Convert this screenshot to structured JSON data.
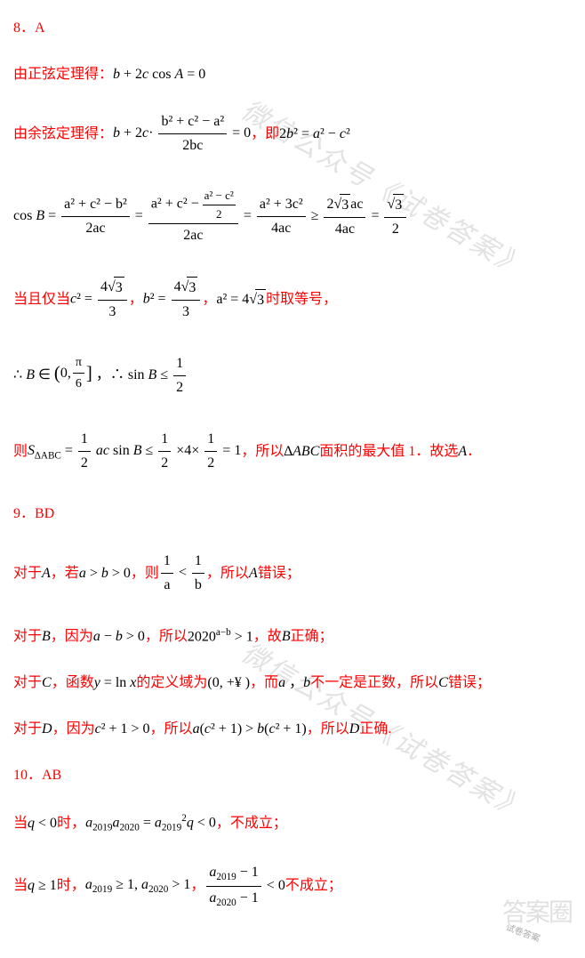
{
  "colors": {
    "highlight": "#ff0000",
    "body": "#000000",
    "watermark": "#cccccc",
    "background": "#ffffff"
  },
  "q8": {
    "number": "8．A",
    "line1_red": "由正弦定理得：",
    "line1_math": "b + 2c cos A = 0",
    "line2_red_a": "由余弦定理得：",
    "frac1_num": "b² + c² − a²",
    "frac1_den": "2bc",
    "line2_red_b": "，即",
    "line2_math_b": "2b² = a² − c²",
    "cosB": "cos B =",
    "fA_num": "a² + c² − b²",
    "fA_den": "2ac",
    "fB_num_pre": "a² + c² − ",
    "fB_inner_num": "a² − c²",
    "fB_inner_den": "2",
    "fB_den": "2ac",
    "fC_num": "a² + 3c²",
    "fC_den": "4ac",
    "fD_num_pre": "2",
    "fD_num_sqrt": "3",
    "fD_num_post": "ac",
    "fD_den": "4ac",
    "fE_sqrt": "3",
    "fE_den": "2",
    "line4_red_a": "当且仅当",
    "c2": "c² =",
    "c2_num_pre": "4",
    "c2_num_sqrt": "3",
    "c2_den": "3",
    "b2": "b² =",
    "b2_num_pre": "4",
    "b2_num_sqrt": "3",
    "b2_den": "3",
    "a2_pre": "a² = 4",
    "a2_sqrt": "3",
    "line4_red_b": " 时取等号，",
    "line5_a": "∴ B ∈",
    "pi": "π",
    "six": "6",
    "zero": "0,",
    "line5_b": "，∴ sin B ≤",
    "half_num": "1",
    "half_den": "2",
    "line6_red_a": "则",
    "S": "S",
    "sub_abc": "∆ABC",
    "eq_half": " = ",
    "ac_sin": "ac sin B ≤ ",
    "times4": "×4×",
    "eq1": " = 1",
    "line6_red_b": "，所以",
    "tri": "∆ABC",
    "line6_red_c": "面积的最大值 1．故选",
    "A": "A",
    "dot": "．"
  },
  "q9": {
    "number": "9．BD",
    "A_red1": "对于",
    "A_i": "A",
    "A_red2": "，若",
    "A_cond": "a > b > 0",
    "A_red3": "，则",
    "oneA_num": "1",
    "oneA_den": "a",
    "lt": "<",
    "oneB_num": "1",
    "oneB_den": "b",
    "A_red4": "，所以",
    "A_i2": "A",
    "A_red5": "错误；",
    "B_red1": "对于",
    "B_i": "B",
    "B_red2": "，因为",
    "B_cond": "a − b > 0",
    "B_red3": "，所以",
    "B_exp_base": "2020",
    "B_exp_sup": "a−b",
    "B_gt1": " > 1",
    "B_red4": "，故",
    "B_i2": "B",
    "B_red5": "正确；",
    "C_red1": "对于",
    "C_i": "C",
    "C_red2": "，函数",
    "C_fn": "y = ln x",
    "C_red3": "的定义域为",
    "C_dom": "(0, +¥ )",
    "C_red4": "，而",
    "C_ab": "a ， b",
    "C_red5": "不一定是正数，所以",
    "C_i2": "C",
    "C_red6": "错误；",
    "D_red1": "对于",
    "D_i": "D",
    "D_red2": "，因为",
    "D_cond": "c² + 1 > 0",
    "D_red3": "，所以",
    "D_ineq": "a(c² + 1) > b(c² + 1)",
    "D_red4": "，所以",
    "D_i2": "D",
    "D_red5": "正确."
  },
  "q10": {
    "number": "10．AB",
    "L1_red1": "当",
    "L1_cond": "q < 0",
    "L1_red2": "时，",
    "L1_eq_a": "a",
    "L1_s1": "2019",
    "L1_s2": "2020",
    "L1_eq_mid": " = a",
    "L1_sup2": "2",
    "L1_q": "q < 0",
    "L1_red3": "，不成立；",
    "L2_red1": "当",
    "L2_cond": "q ≥ 1",
    "L2_red2": "时，",
    "L2_a": "a",
    "L2_ge1": " ≥ 1, ",
    "L2_gt1": " > 1",
    "L2_comma": "，",
    "L2_fnum_a": "a",
    "L2_fnum_sub": "2019",
    "L2_fnum_m1": " − 1",
    "L2_fden_a": "a",
    "L2_fden_sub": "2020",
    "L2_fden_m1": " − 1",
    "L2_lt0": " < 0",
    "L2_red3": " 不成立；"
  },
  "watermark": "微信公众号《试卷答案》",
  "logo": "答案圈",
  "mini": "试卷答案"
}
